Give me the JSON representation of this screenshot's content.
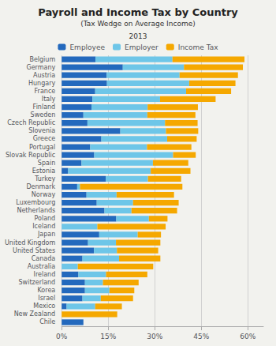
{
  "chart_data": {
    "type": "bar",
    "orientation": "horizontal",
    "stacked": true,
    "title": "Payroll and Income Tax by Country",
    "subtitle": "(Tax Wedge on Average Income)",
    "annotations": [
      "2013"
    ],
    "categories": [
      "Belgium",
      "Germany",
      "Austria",
      "Hungary",
      "France",
      "Italy",
      "Finland",
      "Sweden",
      "Czech Republic",
      "Slovenia",
      "Greece",
      "Portugal",
      "Slovak Republic",
      "Spain",
      "Estonia",
      "Turkey",
      "Denmark",
      "Norway",
      "Luxembourg",
      "Netherlands",
      "Poland",
      "Iceland",
      "Japan",
      "United Kingdom",
      "United States",
      "Canada",
      "Australia",
      "Ireland",
      "Switzerland",
      "Korea",
      "Israel",
      "Mexico",
      "New Zealand",
      "Chile"
    ],
    "series": [
      {
        "name": "Employee",
        "color": "#2369bd",
        "values": [
          10.9,
          19.7,
          14.5,
          14.6,
          10.8,
          9.9,
          9.6,
          7.0,
          8.3,
          18.9,
          12.8,
          9.2,
          10.5,
          6.4,
          2.1,
          14.2,
          5.0,
          8.0,
          11.3,
          13.8,
          17.6,
          0.0,
          12.1,
          8.5,
          10.4,
          6.7,
          0.0,
          5.4,
          7.5,
          7.5,
          6.7,
          1.6,
          0.0,
          7.0
        ]
      },
      {
        "name": "Employer",
        "color": "#6ec6e8",
        "values": [
          24.8,
          19.7,
          23.5,
          26.5,
          29.3,
          21.8,
          18.1,
          20.6,
          25.0,
          14.7,
          21.2,
          18.3,
          25.4,
          23.0,
          26.6,
          13.6,
          0.9,
          9.7,
          11.7,
          8.7,
          10.5,
          11.5,
          12.4,
          9.0,
          7.4,
          11.8,
          5.2,
          8.9,
          5.8,
          7.9,
          5.9,
          9.2,
          0.0,
          0.0
        ]
      },
      {
        "name": "Income Tax",
        "color": "#f5a800",
        "values": [
          23.2,
          19.0,
          18.8,
          14.9,
          14.5,
          17.9,
          16.2,
          15.5,
          10.5,
          10.4,
          9.5,
          14.3,
          7.3,
          11.4,
          12.8,
          10.7,
          33.0,
          18.5,
          14.7,
          14.7,
          6.0,
          22.0,
          7.5,
          14.3,
          13.3,
          13.3,
          24.3,
          13.3,
          11.5,
          8.0,
          10.4,
          8.6,
          17.9,
          0.0
        ]
      }
    ],
    "xlim": [
      0,
      65
    ],
    "xticks": [
      {
        "value": 0,
        "label": "0%"
      },
      {
        "value": 15,
        "label": "15%"
      },
      {
        "value": 30,
        "label": "30%"
      },
      {
        "value": 45,
        "label": "45%"
      },
      {
        "value": 60,
        "label": "60%"
      }
    ],
    "grid": true,
    "legend": "top"
  }
}
